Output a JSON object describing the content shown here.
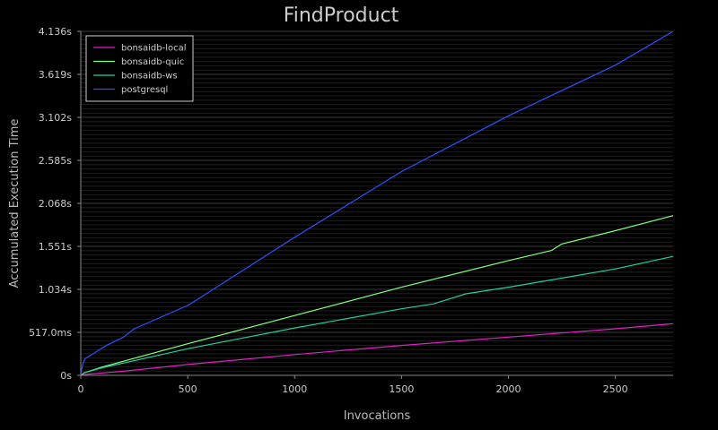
{
  "chart_data": {
    "type": "line",
    "title": "FindProduct",
    "xlabel": "Invocations",
    "ylabel": "Accumulated Execution Time",
    "xlim": [
      0,
      2770
    ],
    "ylim": [
      0,
      4.136
    ],
    "x_ticks": [
      0,
      500,
      1000,
      1500,
      2000,
      2500
    ],
    "x_tick_labels": [
      "0",
      "500",
      "1000",
      "1500",
      "2000",
      "2500"
    ],
    "y_ticks": [
      0,
      0.517,
      1.034,
      1.551,
      2.068,
      2.585,
      3.102,
      3.619,
      4.136
    ],
    "y_tick_labels": [
      "0s",
      "517.0ms",
      "1.034s",
      "1.551s",
      "2.068s",
      "2.585s",
      "3.102s",
      "3.619s",
      "4.136s"
    ],
    "grid": true,
    "legend_position": "top-left",
    "colors": {
      "background": "#000000",
      "axis": "#888888",
      "grid_major": "#3a3a3a",
      "grid_minor": "#1e1e1e"
    },
    "series": [
      {
        "name": "bonsaidb-local",
        "color": "#e020c0",
        "x": [
          0,
          10,
          200,
          500,
          1000,
          1500,
          2000,
          2500,
          2770
        ],
        "y": [
          0,
          0.01,
          0.05,
          0.13,
          0.25,
          0.36,
          0.46,
          0.56,
          0.62
        ]
      },
      {
        "name": "bonsaidb-quic",
        "color": "#80ff80",
        "x": [
          0,
          15,
          100,
          500,
          1000,
          1500,
          2000,
          2200,
          2250,
          2500,
          2770
        ],
        "y": [
          0,
          0.03,
          0.1,
          0.38,
          0.72,
          1.06,
          1.38,
          1.5,
          1.58,
          1.74,
          1.92
        ]
      },
      {
        "name": "bonsaidb-ws",
        "color": "#20d0a0",
        "x": [
          0,
          15,
          100,
          500,
          1000,
          1500,
          1650,
          1800,
          2000,
          2500,
          2770
        ],
        "y": [
          0,
          0.03,
          0.09,
          0.32,
          0.57,
          0.8,
          0.86,
          0.98,
          1.06,
          1.28,
          1.43
        ]
      },
      {
        "name": "postgresql",
        "color": "#3050ff",
        "x": [
          0,
          10,
          20,
          120,
          200,
          250,
          500,
          550,
          1000,
          1500,
          2000,
          2500,
          2770
        ],
        "y": [
          0.02,
          0.14,
          0.2,
          0.36,
          0.46,
          0.56,
          0.84,
          0.92,
          1.66,
          2.45,
          3.12,
          3.73,
          4.136
        ]
      }
    ]
  }
}
